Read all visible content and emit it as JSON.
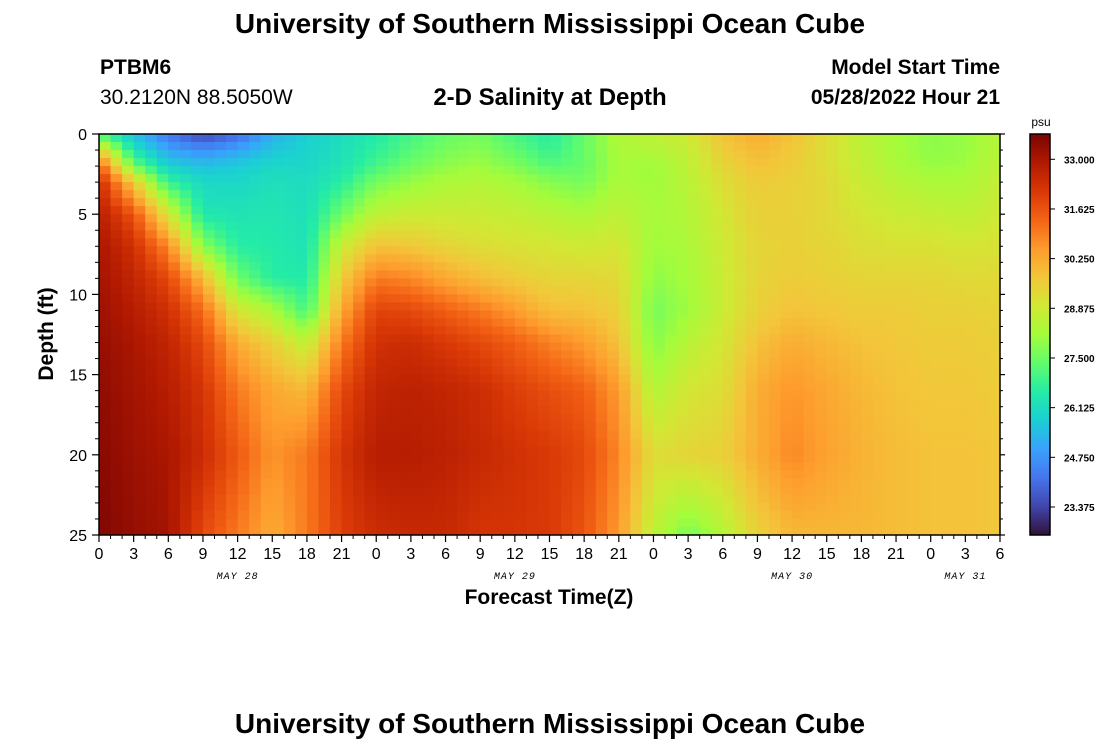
{
  "header": {
    "title": "University of Southern Mississippi Ocean Cube",
    "station_id": "PTBM6",
    "coordinates": "30.2120N  88.5050W",
    "subtitle": "2-D Salinity at Depth",
    "model_start_label": "Model Start Time",
    "model_start_value": "05/28/2022 Hour 21"
  },
  "footer": {
    "title": "University of Southern Mississippi Ocean Cube"
  },
  "chart_data": {
    "type": "heatmap",
    "title": "2-D Salinity at Depth",
    "xlabel": "Forecast Time(Z)",
    "ylabel": "Depth (ft)",
    "x_range_hours": [
      0,
      78
    ],
    "x_tick_labels": [
      "0",
      "3",
      "6",
      "9",
      "12",
      "15",
      "18",
      "21",
      "0",
      "3",
      "6",
      "9",
      "12",
      "15",
      "18",
      "21",
      "0",
      "3",
      "6",
      "9",
      "12",
      "15",
      "18",
      "21",
      "0",
      "3",
      "6"
    ],
    "date_labels": [
      {
        "text": "MAY 28",
        "hour": 12
      },
      {
        "text": "MAY 29",
        "hour": 36
      },
      {
        "text": "MAY 30",
        "hour": 60
      },
      {
        "text": "MAY 31",
        "hour": 75
      }
    ],
    "y_range": [
      0,
      25
    ],
    "y_ticks": [
      0,
      5,
      10,
      15,
      20,
      25
    ],
    "colorbar": {
      "unit": "psu",
      "min": 22.6,
      "max": 33.7,
      "tick_labels": [
        "33.000",
        "31.625",
        "30.250",
        "28.875",
        "27.500",
        "26.125",
        "24.750",
        "23.375"
      ],
      "colors": [
        "#30123b",
        "#4145ab",
        "#4675ed",
        "#39a2fc",
        "#1bcfd4",
        "#24eca6",
        "#61fc6c",
        "#a4fc3b",
        "#d1e834",
        "#f3c63a",
        "#fe9b2d",
        "#f36315",
        "#d93806",
        "#b11901",
        "#7a0403"
      ]
    },
    "series_profiles": [
      {
        "hour": 0,
        "depth_ft": [
          0,
          1,
          2,
          3,
          5,
          7,
          9,
          11,
          13,
          16,
          20,
          25
        ],
        "salinity_psu": [
          27.0,
          29.5,
          31.5,
          32.4,
          32.8,
          33.0,
          33.1,
          33.2,
          33.3,
          33.4,
          33.5,
          33.6
        ]
      },
      {
        "hour": 3,
        "depth_ft": [
          0,
          1,
          2,
          3,
          5,
          7,
          9,
          11,
          13,
          16,
          20,
          25
        ],
        "salinity_psu": [
          25.5,
          26.3,
          27.5,
          29.6,
          31.6,
          32.3,
          32.6,
          32.8,
          33.0,
          33.1,
          33.2,
          33.3
        ]
      },
      {
        "hour": 6,
        "depth_ft": [
          0,
          1,
          2,
          3,
          5,
          7,
          9,
          11,
          13,
          16,
          20,
          25
        ],
        "salinity_psu": [
          24.2,
          25.0,
          25.8,
          26.8,
          29.0,
          30.8,
          31.8,
          32.3,
          32.6,
          32.8,
          33.0,
          33.1
        ]
      },
      {
        "hour": 9,
        "depth_ft": [
          0,
          1,
          2,
          3,
          5,
          7,
          9,
          11,
          13,
          16,
          20,
          25
        ],
        "salinity_psu": [
          23.4,
          24.6,
          25.5,
          26.0,
          26.4,
          27.8,
          30.0,
          31.2,
          31.8,
          32.2,
          32.4,
          31.8
        ]
      },
      {
        "hour": 12,
        "depth_ft": [
          0,
          1,
          2,
          3,
          5,
          7,
          9,
          11,
          13,
          16,
          20,
          25
        ],
        "salinity_psu": [
          24.0,
          25.0,
          25.7,
          26.0,
          26.3,
          26.6,
          27.5,
          29.0,
          30.2,
          31.0,
          31.5,
          31.0
        ]
      },
      {
        "hour": 15,
        "depth_ft": [
          0,
          1,
          2,
          3,
          5,
          7,
          9,
          11,
          13,
          16,
          20,
          25
        ],
        "salinity_psu": [
          25.2,
          25.6,
          26.0,
          26.2,
          26.4,
          26.5,
          26.6,
          28.3,
          29.5,
          30.3,
          30.6,
          30.2
        ]
      },
      {
        "hour": 18,
        "depth_ft": [
          0,
          1,
          2,
          3,
          5,
          7,
          9,
          11,
          13,
          16,
          20,
          25
        ],
        "salinity_psu": [
          25.8,
          25.9,
          26.0,
          26.1,
          26.2,
          26.3,
          26.5,
          27.0,
          28.6,
          30.0,
          31.0,
          31.0
        ]
      },
      {
        "hour": 21,
        "depth_ft": [
          0,
          1,
          2,
          3,
          5,
          7,
          9,
          11,
          13,
          16,
          20,
          25
        ],
        "salinity_psu": [
          26.1,
          26.2,
          26.3,
          26.6,
          27.5,
          28.8,
          29.6,
          30.3,
          31.0,
          31.8,
          32.2,
          32.0
        ]
      },
      {
        "hour": 24,
        "depth_ft": [
          0,
          1,
          2,
          3,
          5,
          7,
          9,
          11,
          13,
          16,
          20,
          25
        ],
        "salinity_psu": [
          26.5,
          26.7,
          27.0,
          27.6,
          28.6,
          29.8,
          31.0,
          31.9,
          32.3,
          32.6,
          32.8,
          32.4
        ]
      },
      {
        "hour": 27,
        "depth_ft": [
          0,
          1,
          2,
          3,
          5,
          7,
          9,
          11,
          13,
          16,
          20,
          25
        ],
        "salinity_psu": [
          27.0,
          27.2,
          27.5,
          28.0,
          28.8,
          29.7,
          30.8,
          31.8,
          32.4,
          32.7,
          32.8,
          32.5
        ]
      },
      {
        "hour": 30,
        "depth_ft": [
          0,
          1,
          2,
          3,
          5,
          7,
          9,
          11,
          13,
          16,
          20,
          25
        ],
        "salinity_psu": [
          27.4,
          27.6,
          27.9,
          28.3,
          28.8,
          29.4,
          30.3,
          31.4,
          32.1,
          32.6,
          32.7,
          32.5
        ]
      },
      {
        "hour": 33,
        "depth_ft": [
          0,
          1,
          2,
          3,
          5,
          7,
          9,
          11,
          13,
          16,
          20,
          25
        ],
        "salinity_psu": [
          27.6,
          27.8,
          28.1,
          28.4,
          28.8,
          29.2,
          29.9,
          31.0,
          31.8,
          32.4,
          32.5,
          32.2
        ]
      },
      {
        "hour": 36,
        "depth_ft": [
          0,
          1,
          2,
          3,
          5,
          7,
          9,
          11,
          13,
          16,
          20,
          25
        ],
        "salinity_psu": [
          27.0,
          27.3,
          27.7,
          28.2,
          28.7,
          29.1,
          29.6,
          30.5,
          31.4,
          32.0,
          32.3,
          32.2
        ]
      },
      {
        "hour": 39,
        "depth_ft": [
          0,
          1,
          2,
          3,
          5,
          7,
          9,
          11,
          13,
          16,
          20,
          25
        ],
        "salinity_psu": [
          26.6,
          26.8,
          27.2,
          27.8,
          28.5,
          29.0,
          29.4,
          29.9,
          30.9,
          31.7,
          32.1,
          32.1
        ]
      },
      {
        "hour": 42,
        "depth_ft": [
          0,
          1,
          2,
          3,
          5,
          7,
          9,
          11,
          13,
          16,
          20,
          25
        ],
        "salinity_psu": [
          27.4,
          27.4,
          27.4,
          27.6,
          28.3,
          28.9,
          29.4,
          29.8,
          30.5,
          31.4,
          31.8,
          31.6
        ]
      },
      {
        "hour": 45,
        "depth_ft": [
          0,
          1,
          2,
          3,
          5,
          7,
          9,
          11,
          13,
          16,
          20,
          25
        ],
        "salinity_psu": [
          28.4,
          28.3,
          28.2,
          28.3,
          28.6,
          29.0,
          29.3,
          29.5,
          29.8,
          30.5,
          30.8,
          30.5
        ]
      },
      {
        "hour": 48,
        "depth_ft": [
          0,
          1,
          2,
          3,
          5,
          7,
          9,
          11,
          13,
          16,
          20,
          25
        ],
        "salinity_psu": [
          28.6,
          28.4,
          28.1,
          28.1,
          28.2,
          28.1,
          27.9,
          27.6,
          27.8,
          28.4,
          29.2,
          28.6
        ]
      },
      {
        "hour": 51,
        "depth_ft": [
          0,
          1,
          2,
          3,
          5,
          7,
          9,
          11,
          13,
          16,
          20,
          25
        ],
        "salinity_psu": [
          28.9,
          28.7,
          28.6,
          28.5,
          28.4,
          28.3,
          28.2,
          28.1,
          28.5,
          29.0,
          29.4,
          27.6
        ]
      },
      {
        "hour": 54,
        "depth_ft": [
          0,
          1,
          2,
          3,
          5,
          7,
          9,
          11,
          13,
          16,
          20,
          25
        ],
        "salinity_psu": [
          29.8,
          29.6,
          29.4,
          29.2,
          29.0,
          28.9,
          28.8,
          28.8,
          29.0,
          29.2,
          29.5,
          28.4
        ]
      },
      {
        "hour": 57,
        "depth_ft": [
          0,
          1,
          2,
          3,
          5,
          7,
          9,
          11,
          13,
          16,
          20,
          25
        ],
        "salinity_psu": [
          30.2,
          30.0,
          29.8,
          29.6,
          29.5,
          29.4,
          29.4,
          29.5,
          29.8,
          30.2,
          30.2,
          29.5
        ]
      },
      {
        "hour": 60,
        "depth_ft": [
          0,
          1,
          2,
          3,
          5,
          7,
          9,
          11,
          13,
          16,
          20,
          25
        ],
        "salinity_psu": [
          29.8,
          29.7,
          29.6,
          29.5,
          29.5,
          29.5,
          29.6,
          29.8,
          30.2,
          30.6,
          30.8,
          30.0
        ]
      },
      {
        "hour": 63,
        "depth_ft": [
          0,
          1,
          2,
          3,
          5,
          7,
          9,
          11,
          13,
          16,
          20,
          25
        ],
        "salinity_psu": [
          29.2,
          29.2,
          29.2,
          29.3,
          29.3,
          29.4,
          29.5,
          29.7,
          30.0,
          30.3,
          30.4,
          30.0
        ]
      },
      {
        "hour": 66,
        "depth_ft": [
          0,
          1,
          2,
          3,
          5,
          7,
          9,
          11,
          13,
          16,
          20,
          25
        ],
        "salinity_psu": [
          28.6,
          28.6,
          28.7,
          28.8,
          29.0,
          29.2,
          29.4,
          29.6,
          29.8,
          30.0,
          30.1,
          30.0
        ]
      },
      {
        "hour": 69,
        "depth_ft": [
          0,
          1,
          2,
          3,
          5,
          7,
          9,
          11,
          13,
          16,
          20,
          25
        ],
        "salinity_psu": [
          28.2,
          28.2,
          28.3,
          28.5,
          28.8,
          29.1,
          29.4,
          29.6,
          29.7,
          29.8,
          29.9,
          29.9
        ]
      },
      {
        "hour": 72,
        "depth_ft": [
          0,
          1,
          2,
          3,
          5,
          7,
          9,
          11,
          13,
          16,
          20,
          25
        ],
        "salinity_psu": [
          27.9,
          27.9,
          28.0,
          28.3,
          28.7,
          29.1,
          29.4,
          29.5,
          29.6,
          29.7,
          29.8,
          29.8
        ]
      },
      {
        "hour": 75,
        "depth_ft": [
          0,
          1,
          2,
          3,
          5,
          7,
          9,
          11,
          13,
          16,
          20,
          25
        ],
        "salinity_psu": [
          28.0,
          28.0,
          28.1,
          28.3,
          28.6,
          29.0,
          29.3,
          29.5,
          29.6,
          29.7,
          29.8,
          29.8
        ]
      },
      {
        "hour": 78,
        "depth_ft": [
          0,
          1,
          2,
          3,
          5,
          7,
          9,
          11,
          13,
          16,
          20,
          25
        ],
        "salinity_psu": [
          28.5,
          28.5,
          28.6,
          28.7,
          28.9,
          29.1,
          29.3,
          29.4,
          29.5,
          29.6,
          29.7,
          29.7
        ]
      }
    ]
  }
}
